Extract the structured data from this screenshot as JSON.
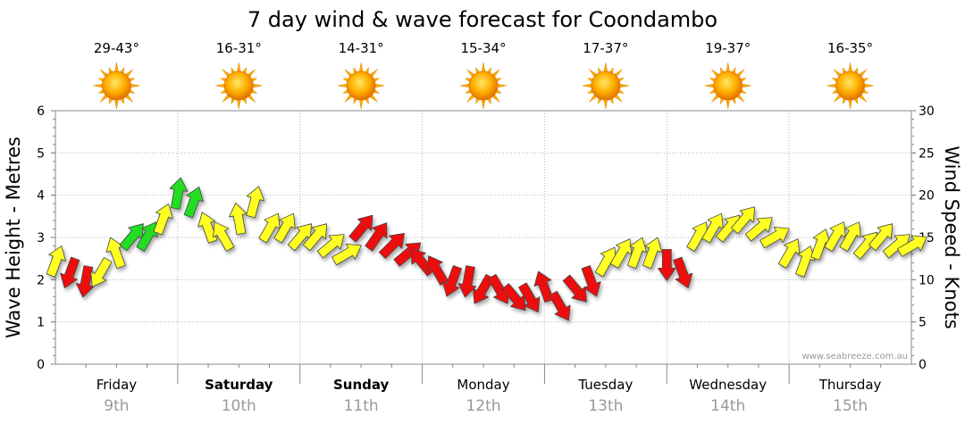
{
  "chart_data": {
    "type": "line",
    "title": "7 day wind & wave forecast for Coondambo",
    "ylabel_left": "Wave Height - Metres",
    "ylabel_right": "Wind Speed - Knots",
    "ylim_left": [
      0,
      6
    ],
    "ylim_right": [
      0,
      30
    ],
    "left_ticks": [
      0,
      1,
      2,
      3,
      4,
      5,
      6
    ],
    "right_ticks": [
      0,
      5,
      10,
      15,
      20,
      25,
      30
    ],
    "watermark": "www.seabreeze.com.au",
    "days": [
      {
        "name": "Friday",
        "date": "9th",
        "temp": "29-43°",
        "bold": false
      },
      {
        "name": "Saturday",
        "date": "10th",
        "temp": "16-31°",
        "bold": true
      },
      {
        "name": "Sunday",
        "date": "11th",
        "temp": "14-31°",
        "bold": true
      },
      {
        "name": "Monday",
        "date": "12th",
        "temp": "15-34°",
        "bold": false
      },
      {
        "name": "Tuesday",
        "date": "13th",
        "temp": "17-37°",
        "bold": false
      },
      {
        "name": "Wednesday",
        "date": "14th",
        "temp": "19-37°",
        "bold": false
      },
      {
        "name": "Thursday",
        "date": "15th",
        "temp": "16-35°",
        "bold": false
      }
    ],
    "wind_colors": {
      "red": "#ee1111",
      "yellow": "#ffff22",
      "green": "#22dd22"
    },
    "wind_series": {
      "name": "Wind",
      "unit": "knots",
      "x_hours": [
        0,
        3,
        6,
        9,
        12,
        15,
        18,
        21,
        24,
        27,
        30,
        33,
        36,
        39,
        42,
        45,
        48,
        51,
        54,
        57,
        60,
        63,
        66,
        69,
        72,
        75,
        78,
        81,
        84,
        87,
        90,
        93,
        96,
        99,
        102,
        105,
        108,
        111,
        114,
        117,
        120,
        123,
        126,
        129,
        132,
        135,
        138,
        141,
        144,
        147,
        150,
        153,
        156,
        159,
        162,
        165,
        168
      ],
      "speed": [
        12,
        11,
        10,
        11,
        13,
        15,
        15,
        17,
        20,
        19,
        16,
        15,
        17,
        19,
        16,
        16,
        15,
        15,
        14,
        13,
        16,
        15,
        14,
        13,
        12,
        11,
        10,
        10,
        9,
        9,
        8,
        8,
        9,
        7,
        9,
        10,
        12,
        13,
        13,
        13,
        12,
        11,
        15,
        16,
        16,
        17,
        16,
        15,
        13,
        12,
        14,
        15,
        15,
        14,
        15,
        14,
        14
      ],
      "direction_deg": [
        20,
        200,
        190,
        210,
        340,
        40,
        30,
        20,
        10,
        20,
        340,
        330,
        350,
        15,
        30,
        30,
        40,
        40,
        50,
        60,
        40,
        35,
        45,
        50,
        320,
        330,
        200,
        190,
        210,
        150,
        140,
        150,
        340,
        150,
        140,
        160,
        30,
        30,
        20,
        20,
        180,
        160,
        30,
        30,
        40,
        40,
        50,
        60,
        30,
        20,
        20,
        30,
        30,
        40,
        40,
        50,
        60
      ],
      "color": [
        "yellow",
        "red",
        "red",
        "yellow",
        "yellow",
        "green",
        "green",
        "yellow",
        "green",
        "green",
        "yellow",
        "yellow",
        "yellow",
        "yellow",
        "yellow",
        "yellow",
        "yellow",
        "yellow",
        "yellow",
        "yellow",
        "red",
        "red",
        "red",
        "red",
        "red",
        "red",
        "red",
        "red",
        "red",
        "red",
        "red",
        "red",
        "red",
        "red",
        "red",
        "red",
        "yellow",
        "yellow",
        "yellow",
        "yellow",
        "red",
        "red",
        "yellow",
        "yellow",
        "yellow",
        "yellow",
        "yellow",
        "yellow",
        "yellow",
        "yellow",
        "yellow",
        "yellow",
        "yellow",
        "yellow",
        "yellow",
        "yellow",
        "yellow"
      ]
    }
  }
}
